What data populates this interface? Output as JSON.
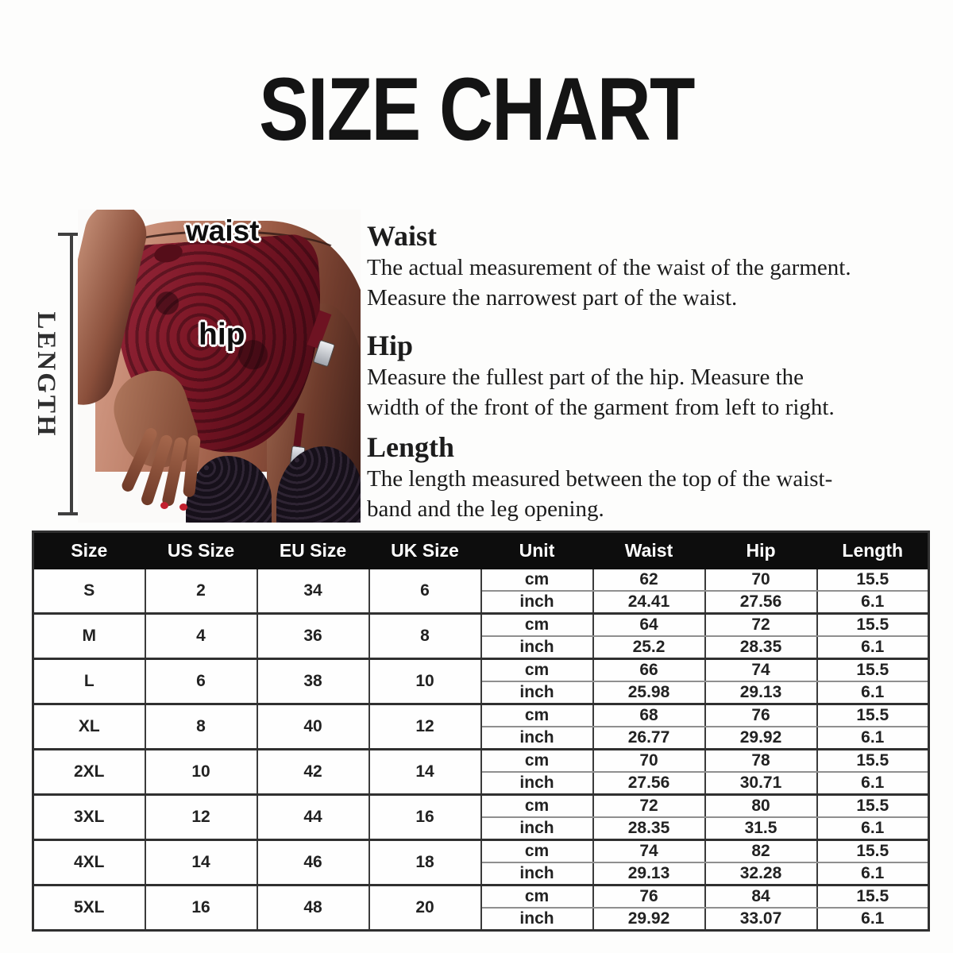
{
  "page": {
    "title": "SIZE CHART"
  },
  "diagram": {
    "waist_label": "waist",
    "hip_label": "hip",
    "length_label": "LENGTH",
    "garment_color": "#7c1726",
    "stocking_color": "#16101a"
  },
  "descriptions": [
    {
      "heading": "Waist",
      "lines": [
        "The actual measurement of the waist of the garment.",
        "Measure the narrowest part of the waist."
      ]
    },
    {
      "heading": "Hip",
      "lines": [
        "Measure the fullest part of the  hip. Measure the",
        "width of the front of the garment from left to right."
      ]
    },
    {
      "heading": "Length",
      "lines": [
        "The length measured between the top of the waist-",
        "band and the leg opening."
      ]
    }
  ],
  "table": {
    "headers": [
      "Size",
      "US Size",
      "EU Size",
      "UK Size",
      "Unit",
      "Waist",
      "Hip",
      "Length"
    ],
    "units": [
      "cm",
      "inch"
    ],
    "header_bg": "#0d0d0d",
    "border_color": "#3b3b3b",
    "rows": [
      {
        "size": "S",
        "us": "2",
        "eu": "34",
        "uk": "6",
        "cm": [
          "62",
          "70",
          "15.5"
        ],
        "inch": [
          "24.41",
          "27.56",
          "6.1"
        ]
      },
      {
        "size": "M",
        "us": "4",
        "eu": "36",
        "uk": "8",
        "cm": [
          "64",
          "72",
          "15.5"
        ],
        "inch": [
          "25.2",
          "28.35",
          "6.1"
        ]
      },
      {
        "size": "L",
        "us": "6",
        "eu": "38",
        "uk": "10",
        "cm": [
          "66",
          "74",
          "15.5"
        ],
        "inch": [
          "25.98",
          "29.13",
          "6.1"
        ]
      },
      {
        "size": "XL",
        "us": "8",
        "eu": "40",
        "uk": "12",
        "cm": [
          "68",
          "76",
          "15.5"
        ],
        "inch": [
          "26.77",
          "29.92",
          "6.1"
        ]
      },
      {
        "size": "2XL",
        "us": "10",
        "eu": "42",
        "uk": "14",
        "cm": [
          "70",
          "78",
          "15.5"
        ],
        "inch": [
          "27.56",
          "30.71",
          "6.1"
        ]
      },
      {
        "size": "3XL",
        "us": "12",
        "eu": "44",
        "uk": "16",
        "cm": [
          "72",
          "80",
          "15.5"
        ],
        "inch": [
          "28.35",
          "31.5",
          "6.1"
        ]
      },
      {
        "size": "4XL",
        "us": "14",
        "eu": "46",
        "uk": "18",
        "cm": [
          "74",
          "82",
          "15.5"
        ],
        "inch": [
          "29.13",
          "32.28",
          "6.1"
        ]
      },
      {
        "size": "5XL",
        "us": "16",
        "eu": "48",
        "uk": "20",
        "cm": [
          "76",
          "84",
          "15.5"
        ],
        "inch": [
          "29.92",
          "33.07",
          "6.1"
        ]
      }
    ]
  }
}
